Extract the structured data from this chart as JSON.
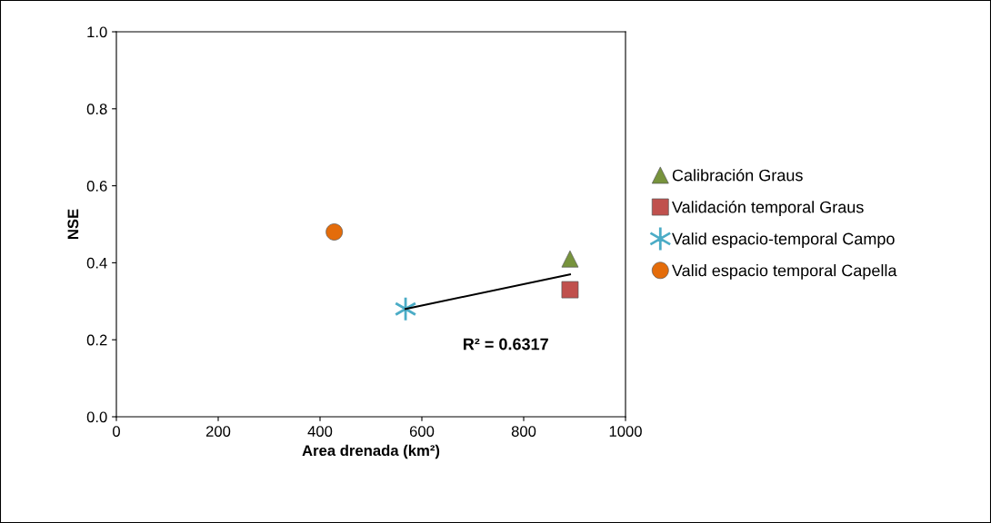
{
  "chart_data": {
    "type": "scatter",
    "xlabel": "Area drenada (km²)",
    "ylabel": "NSE",
    "xlim": [
      0,
      1000
    ],
    "xticks": [
      0,
      200,
      400,
      600,
      800,
      1000
    ],
    "ylim": [
      0,
      1.0
    ],
    "yticks": [
      {
        "value": 0,
        "label": "0.0"
      },
      {
        "value": 0.2,
        "label": "0.2"
      },
      {
        "value": 0.4,
        "label": "0.4"
      },
      {
        "value": 0.6,
        "label": "0.6"
      },
      {
        "value": 0.8,
        "label": "0.8"
      },
      {
        "value": 1.0,
        "label": "1.0"
      }
    ],
    "series": [
      {
        "name": "Calibración Graus",
        "color": "#77933c",
        "marker": "triangle",
        "x": [
          891
        ],
        "values": [
          0.41
        ]
      },
      {
        "name": "Validación temporal Graus",
        "color": "#c0504d",
        "marker": "square",
        "x": [
          891
        ],
        "values": [
          0.33
        ]
      },
      {
        "name": "Valid espacio-temporal Campo",
        "color": "#4bacc6",
        "marker": "cross",
        "x": [
          568
        ],
        "values": [
          0.28
        ]
      },
      {
        "name": "Valid espacio temporal Capella",
        "color": "#e46c0a",
        "marker": "circle",
        "x": [
          428
        ],
        "values": [
          0.48
        ]
      },
      {
        "type": "line",
        "color": "#000000",
        "x": [
          568,
          891
        ],
        "values": [
          0.28,
          0.37
        ]
      }
    ],
    "annotations": [
      "R² = 0.6317"
    ],
    "legend": "right",
    "grid": false
  }
}
